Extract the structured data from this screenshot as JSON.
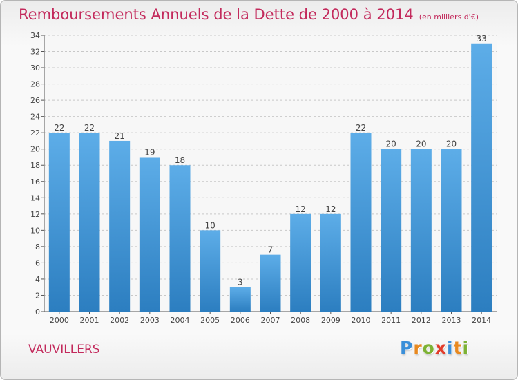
{
  "header": {
    "title": "Remboursements Annuels de la Dette de 2000 à 2014",
    "unit": "(en milliers d'€)"
  },
  "footer": {
    "commune": "VAUVILLERS",
    "brand": "Proxiti",
    "brand_letters": [
      {
        "char": "P",
        "color": "#3a8fd9"
      },
      {
        "char": "r",
        "color": "#e8891f"
      },
      {
        "char": "o",
        "color": "#7db234"
      },
      {
        "char": "x",
        "color": "#e23d2b"
      },
      {
        "char": "i",
        "color": "#3a8fd9"
      },
      {
        "char": "t",
        "color": "#e8891f"
      },
      {
        "char": "i",
        "color": "#7db234"
      }
    ]
  },
  "chart_data": {
    "type": "bar",
    "title": "Remboursements Annuels de la Dette de 2000 à 2014",
    "subtitle": "(en milliers d'€)",
    "categories": [
      "2000",
      "2001",
      "2002",
      "2003",
      "2004",
      "2005",
      "2006",
      "2007",
      "2008",
      "2009",
      "2010",
      "2011",
      "2012",
      "2013",
      "2014"
    ],
    "values": [
      22,
      22,
      21,
      19,
      18,
      10,
      3,
      7,
      12,
      12,
      22,
      20,
      20,
      20,
      33
    ],
    "ylim": [
      0,
      34
    ],
    "yticks": [
      0,
      2,
      4,
      6,
      8,
      10,
      12,
      14,
      16,
      18,
      20,
      22,
      24,
      26,
      28,
      30,
      32,
      34
    ],
    "grid": true,
    "xlabel": "",
    "ylabel": "",
    "colors": {
      "bar_light": "#5dade8",
      "bar_dark": "#2c7ec0",
      "grid": "#c8c8c8",
      "text": "#444444"
    }
  }
}
